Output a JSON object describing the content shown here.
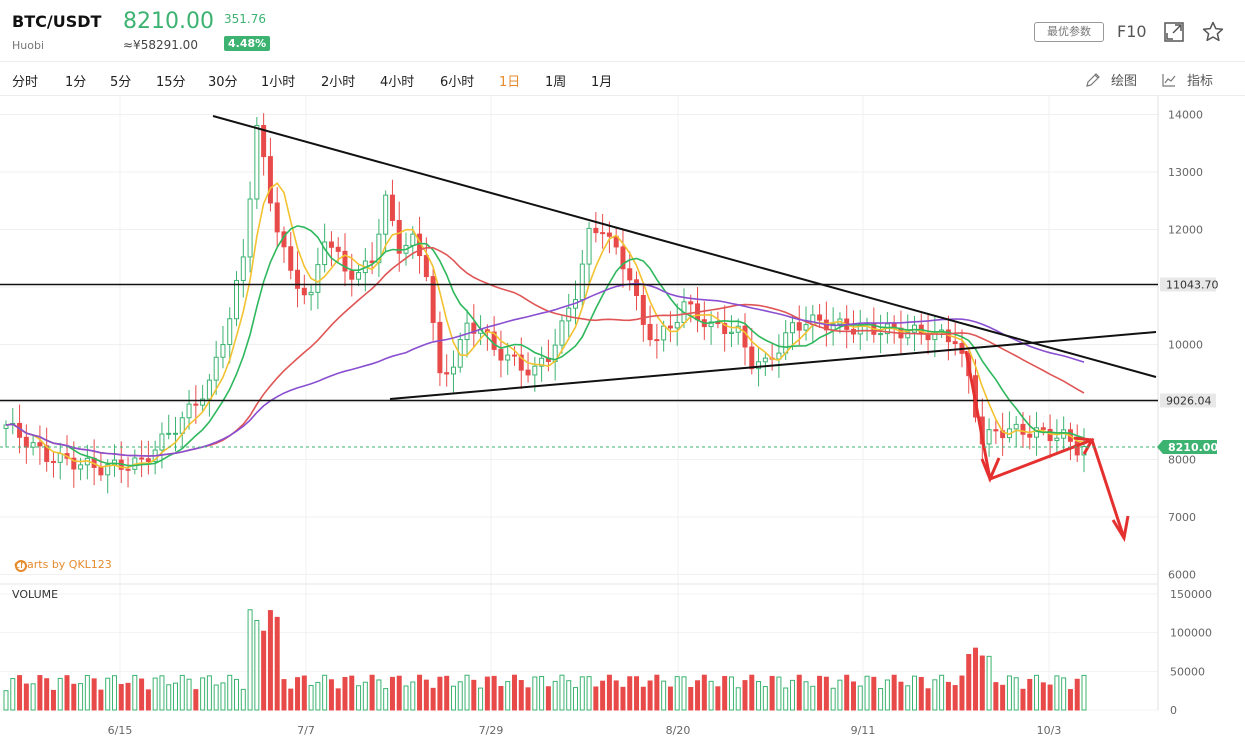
{
  "header": {
    "symbol": "BTC/USDT",
    "exchange": "Huobi",
    "price": "8210.00",
    "cny_price": "≈¥58291.00",
    "change": "351.76",
    "change_pct": "4.48%",
    "params_label": "最优参数",
    "f10_label": "F10",
    "icons": [
      "expand-icon",
      "star-icon"
    ]
  },
  "tabs": [
    {
      "label": "分时",
      "active": false
    },
    {
      "label": "1分",
      "active": false
    },
    {
      "label": "5分",
      "active": false
    },
    {
      "label": "15分",
      "active": false
    },
    {
      "label": "30分",
      "active": false
    },
    {
      "label": "1小时",
      "active": false
    },
    {
      "label": "2小时",
      "active": false
    },
    {
      "label": "4小时",
      "active": false
    },
    {
      "label": "6小时",
      "active": false
    },
    {
      "label": "1日",
      "active": true
    },
    {
      "label": "1周",
      "active": false
    },
    {
      "label": "1月",
      "active": false
    }
  ],
  "tools": {
    "draw_label": "绘图",
    "indicator_label": "指标"
  },
  "watermark": "charts by QKL123",
  "volume_label": "VOLUME",
  "colors": {
    "up": "#3cb371",
    "down": "#e84a4a",
    "ma5": "#f2c230",
    "ma10": "#2eb85c",
    "ma30": "#e05555",
    "ma60": "#8a4fd0",
    "accent": "#e58b2d"
  },
  "chart_data": {
    "type": "candlestick",
    "price_axis_ticks": [
      "14000",
      "13000",
      "12000",
      "11000",
      "10000",
      "9000",
      "8000",
      "7000",
      "6000"
    ],
    "volume_axis_ticks": [
      "150000",
      "100000",
      "50000",
      "0"
    ],
    "x_tick_labels": [
      "6/15",
      "7/7",
      "7/29",
      "8/20",
      "9/11",
      "10/3"
    ],
    "price_levels": [
      {
        "label": "11043.70",
        "value": 11043.7
      },
      {
        "label": "9026.04",
        "value": 9026.04
      }
    ],
    "current_price": {
      "label": "8210.00",
      "value": 8210
    },
    "ylim": [
      6000,
      14000
    ]
  }
}
